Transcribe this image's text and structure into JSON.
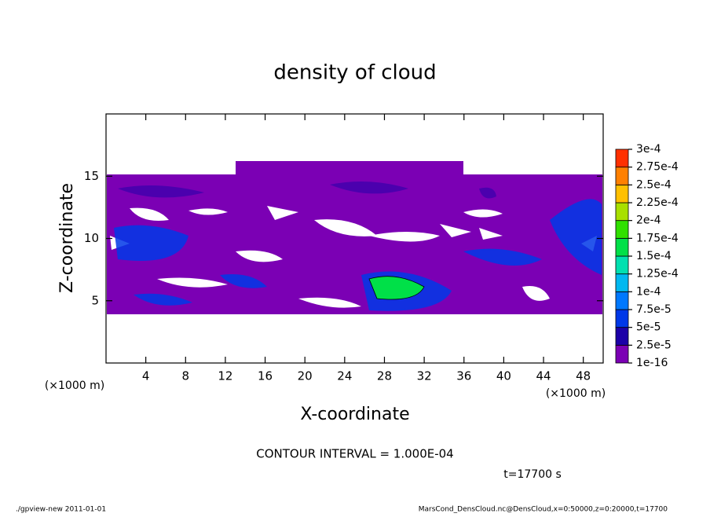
{
  "chart_data": {
    "type": "contour",
    "title": "density of cloud",
    "x_label": "X-coordinate",
    "y_label": "Z-coordinate",
    "x_unit": "(×1000 m)",
    "xlim": [
      0,
      50
    ],
    "xticks": [
      4,
      8,
      12,
      16,
      20,
      24,
      28,
      32,
      36,
      40,
      44,
      48
    ],
    "ylim": [
      0,
      20
    ],
    "yticks": [
      5,
      10,
      15
    ],
    "color_levels": [
      {
        "value": 1e-16,
        "label": "1e-16"
      },
      {
        "value": 2.5e-05,
        "label": "2.5e-5"
      },
      {
        "value": 5e-05,
        "label": "5e-5"
      },
      {
        "value": 7.5e-05,
        "label": "7.5e-5"
      },
      {
        "value": 0.0001,
        "label": "1e-4"
      },
      {
        "value": 0.000125,
        "label": "1.25e-4"
      },
      {
        "value": 0.00015,
        "label": "1.5e-4"
      },
      {
        "value": 0.000175,
        "label": "1.75e-4"
      },
      {
        "value": 0.0002,
        "label": "2e-4"
      },
      {
        "value": 0.000225,
        "label": "2.25e-4"
      },
      {
        "value": 0.00025,
        "label": "2.5e-4"
      },
      {
        "value": 0.000275,
        "label": "2.75e-4"
      },
      {
        "value": 0.0003,
        "label": "3e-4"
      }
    ],
    "color_list": [
      "#7b00b4",
      "#1c00a8",
      "#0038e8",
      "#0078ff",
      "#00b8f0",
      "#00e0b0",
      "#00e048",
      "#30e000",
      "#a8e000",
      "#ffc000",
      "#ff8000",
      "#ff3000"
    ],
    "contour_interval": "CONTOUR INTERVAL = 1.000E-04",
    "time_label": "t=17700 s",
    "footer_left": "./gpview-new  2011-01-01",
    "footer_right": "MarsCond_DensCloud.nc@DensCloud,x=0:50000,z=0:20000,t=17700"
  }
}
